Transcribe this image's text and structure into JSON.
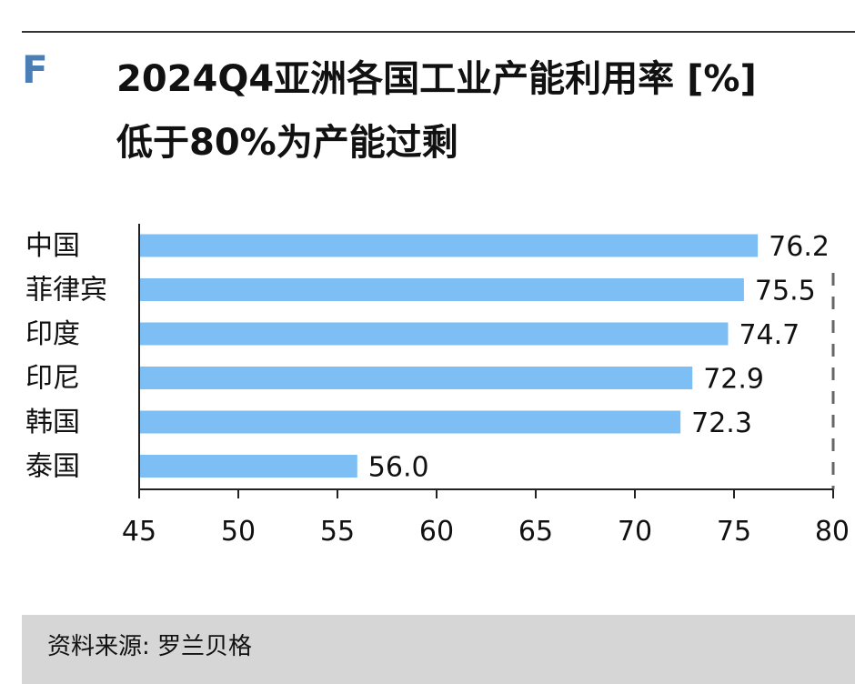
{
  "panel": {
    "letter": "F",
    "title": "2024Q4亚洲各国工业产能利用率 [%]\n低于80%为产能过剩"
  },
  "chart_data": {
    "type": "bar",
    "orientation": "horizontal",
    "categories": [
      "中国",
      "菲律宾",
      "印度",
      "印尼",
      "韩国",
      "泰国"
    ],
    "values": [
      76.2,
      75.5,
      74.7,
      72.9,
      72.3,
      56.0
    ],
    "value_labels": [
      "76.2",
      "75.5",
      "74.7",
      "72.9",
      "72.3",
      "56.0"
    ],
    "xlim": [
      45,
      80
    ],
    "xticks": [
      "45",
      "50",
      "55",
      "60",
      "65",
      "70",
      "75",
      "80"
    ],
    "threshold": 80,
    "threshold_style": "dashed",
    "bar_color": "#7dbff5",
    "grid": false
  },
  "source": {
    "text": "资料来源: 罗兰贝格"
  }
}
